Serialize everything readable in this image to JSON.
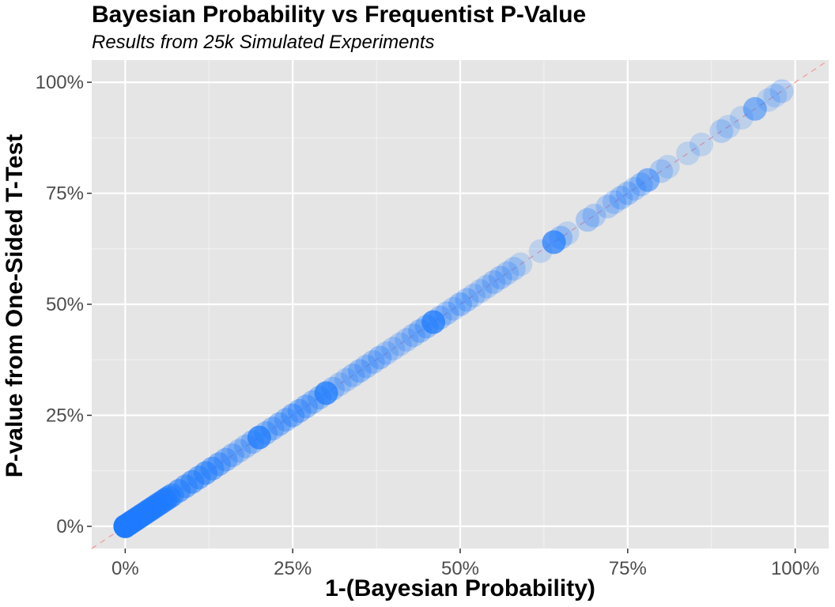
{
  "chart_data": {
    "type": "scatter",
    "title": "Bayesian Probability vs Frequentist P-Value",
    "subtitle": "Results from 25k Simulated Experiments",
    "xlabel": "1-(Bayesian Probability)",
    "ylabel": "P-value from One-Sided T-Test",
    "xlim": [
      -0.05,
      1.05
    ],
    "ylim": [
      -0.05,
      1.05
    ],
    "x_ticks": [
      0,
      0.25,
      0.5,
      0.75,
      1.0
    ],
    "y_ticks": [
      0,
      0.25,
      0.5,
      0.75,
      1.0
    ],
    "x_tick_labels": [
      "0%",
      "25%",
      "50%",
      "75%",
      "100%"
    ],
    "y_tick_labels": [
      "0%",
      "25%",
      "50%",
      "75%",
      "100%"
    ],
    "grid": true,
    "reference_line": {
      "slope": 1,
      "intercept": 0,
      "style": "dashed",
      "color": "#f4a0a0"
    },
    "point_color": "#1e7bff",
    "panel_color": "#e5e5e5",
    "points": {
      "x": [
        0.0,
        0.005,
        0.01,
        0.015,
        0.02,
        0.025,
        0.03,
        0.035,
        0.04,
        0.045,
        0.05,
        0.055,
        0.06,
        0.065,
        0.07,
        0.08,
        0.09,
        0.1,
        0.11,
        0.12,
        0.13,
        0.14,
        0.15,
        0.16,
        0.17,
        0.18,
        0.19,
        0.2,
        0.21,
        0.22,
        0.23,
        0.24,
        0.25,
        0.26,
        0.27,
        0.28,
        0.29,
        0.3,
        0.31,
        0.32,
        0.33,
        0.34,
        0.35,
        0.36,
        0.37,
        0.38,
        0.39,
        0.4,
        0.41,
        0.42,
        0.43,
        0.44,
        0.45,
        0.46,
        0.47,
        0.48,
        0.49,
        0.5,
        0.51,
        0.52,
        0.53,
        0.54,
        0.55,
        0.56,
        0.57,
        0.58,
        0.59,
        0.62,
        0.64,
        0.65,
        0.66,
        0.69,
        0.7,
        0.72,
        0.73,
        0.74,
        0.75,
        0.76,
        0.77,
        0.78,
        0.8,
        0.81,
        0.84,
        0.86,
        0.89,
        0.9,
        0.92,
        0.94,
        0.96,
        0.97,
        0.98
      ],
      "y": [
        0.0,
        0.005,
        0.01,
        0.015,
        0.02,
        0.025,
        0.03,
        0.035,
        0.04,
        0.045,
        0.05,
        0.055,
        0.06,
        0.065,
        0.07,
        0.08,
        0.09,
        0.1,
        0.11,
        0.12,
        0.13,
        0.14,
        0.15,
        0.16,
        0.17,
        0.18,
        0.19,
        0.2,
        0.21,
        0.22,
        0.23,
        0.24,
        0.25,
        0.26,
        0.27,
        0.28,
        0.29,
        0.3,
        0.31,
        0.32,
        0.33,
        0.34,
        0.35,
        0.36,
        0.37,
        0.38,
        0.39,
        0.4,
        0.41,
        0.42,
        0.43,
        0.44,
        0.45,
        0.46,
        0.47,
        0.48,
        0.49,
        0.5,
        0.51,
        0.52,
        0.53,
        0.54,
        0.55,
        0.56,
        0.57,
        0.58,
        0.59,
        0.62,
        0.64,
        0.65,
        0.66,
        0.69,
        0.7,
        0.72,
        0.73,
        0.74,
        0.75,
        0.76,
        0.77,
        0.78,
        0.8,
        0.81,
        0.84,
        0.86,
        0.89,
        0.9,
        0.92,
        0.94,
        0.96,
        0.97,
        0.98
      ],
      "opacity": [
        1.0,
        0.9,
        0.9,
        0.85,
        0.85,
        0.8,
        0.8,
        0.75,
        0.75,
        0.7,
        0.7,
        0.65,
        0.7,
        0.6,
        0.55,
        0.55,
        0.5,
        0.55,
        0.5,
        0.55,
        0.5,
        0.45,
        0.4,
        0.35,
        0.3,
        0.3,
        0.35,
        0.75,
        0.35,
        0.35,
        0.4,
        0.35,
        0.45,
        0.4,
        0.4,
        0.35,
        0.35,
        0.75,
        0.3,
        0.25,
        0.25,
        0.3,
        0.35,
        0.3,
        0.3,
        0.35,
        0.25,
        0.25,
        0.25,
        0.25,
        0.3,
        0.35,
        0.35,
        0.75,
        0.3,
        0.3,
        0.25,
        0.35,
        0.3,
        0.25,
        0.25,
        0.25,
        0.3,
        0.3,
        0.25,
        0.25,
        0.2,
        0.2,
        0.7,
        0.3,
        0.2,
        0.3,
        0.25,
        0.25,
        0.25,
        0.3,
        0.3,
        0.25,
        0.3,
        0.5,
        0.25,
        0.2,
        0.2,
        0.2,
        0.25,
        0.2,
        0.2,
        0.5,
        0.2,
        0.2,
        0.25
      ]
    }
  }
}
